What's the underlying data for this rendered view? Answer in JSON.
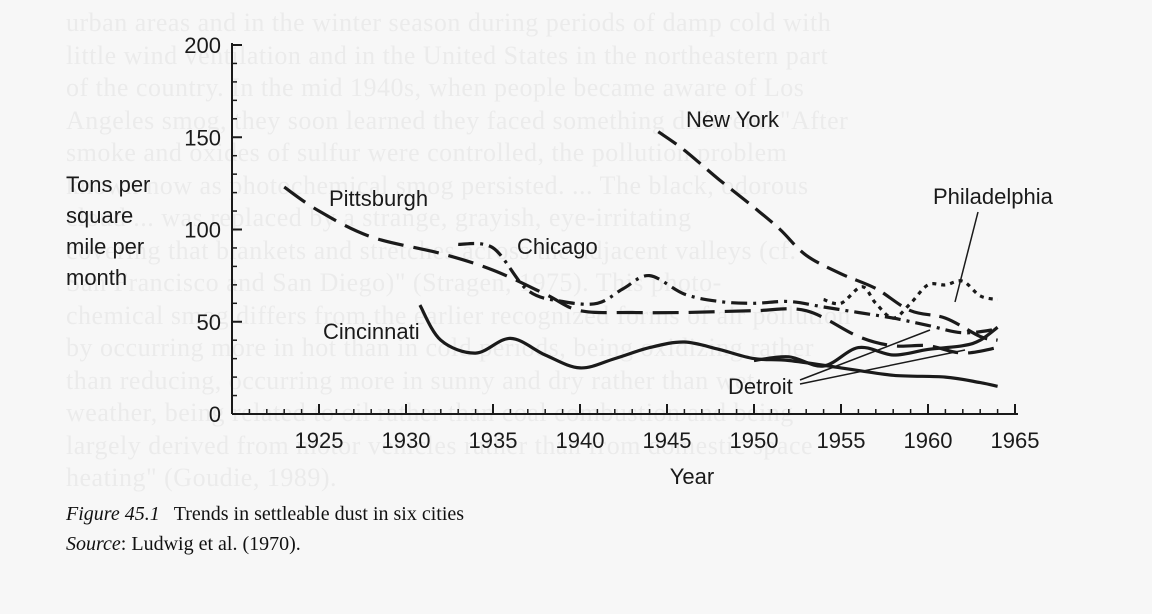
{
  "background_text": [
    "urban areas and in the winter season during periods of damp cold with",
    "little wind ventilation and in the United States in the northeastern part",
    "of the country. In the mid 1940s, when people became aware of Los",
    "Angeles smog, they soon learned they faced something different. \"After",
    "smoke and oxides of sulfur were controlled, the pollution problem",
    "known now as photochemical smog persisted. ... The black, odorous",
    "cloud ... was replaced by a strange, grayish, eye-irritating",
    "covering that blankets and stretches across the adjacent valleys (cf.",
    "San Francisco and San Diego)\" (Stragen, 1975). This photo-",
    "chemical smog differs from the earlier recognized forms of air pollution",
    "by occurring more in hot than in cold periods, being oxidizing rather",
    "than reducing, occurring more in sunny and dry rather than wet",
    "weather, being related to oil rather than coal combustion and being",
    "largely derived from motor vehicles rather than from domestic space",
    "heating\" (Goudie, 1989)."
  ],
  "caption": {
    "figure_label": "Figure 45.1",
    "title": "Trends in settleable dust in six cities",
    "source_label": "Source",
    "source_text": ": Ludwig et al. (1970)."
  },
  "chart_data": {
    "type": "line",
    "title": "",
    "xlabel": "Year",
    "ylabel": "Tons per square mile per month",
    "ylabel_lines": [
      "Tons per",
      "square",
      "mile per",
      "month"
    ],
    "xlim": [
      1920,
      1965
    ],
    "ylim": [
      0,
      200
    ],
    "x_ticks": [
      1925,
      1930,
      1935,
      1940,
      1945,
      1950,
      1955,
      1960,
      1965
    ],
    "y_ticks": [
      0,
      50,
      100,
      150,
      200
    ],
    "x_tick_labels": [
      "1925",
      "1930",
      "1935",
      "1940",
      "1945",
      "1950",
      "1955",
      "1960",
      "1965"
    ],
    "y_tick_labels": [
      "0",
      "50",
      "100",
      "150",
      "200"
    ],
    "grid": false,
    "legend": "none (series labeled directly on chart)",
    "series": [
      {
        "name": "New York",
        "style": "dashed",
        "x": [
          1944.5,
          1946,
          1948,
          1950,
          1951.5,
          1953,
          1955,
          1957,
          1959,
          1961,
          1963,
          1964
        ],
        "y": [
          153,
          143,
          127,
          112,
          100,
          86,
          76,
          68,
          56,
          52,
          42,
          40
        ]
      },
      {
        "name": "Pittsburgh",
        "style": "long-dashed",
        "x": [
          1923,
          1925,
          1928,
          1932,
          1935,
          1938,
          1940,
          1943,
          1946,
          1950,
          1953,
          1956,
          1958,
          1960,
          1962,
          1964
        ],
        "y": [
          123,
          110,
          96,
          87,
          78,
          65,
          56,
          55,
          55,
          56,
          56,
          42,
          37,
          37,
          33,
          36
        ]
      },
      {
        "name": "Chicago",
        "style": "dash-dot",
        "x": [
          1933,
          1935,
          1937,
          1939,
          1941,
          1942.5,
          1944,
          1946,
          1948,
          1950,
          1952,
          1954,
          1956,
          1958,
          1960,
          1962,
          1964
        ],
        "y": [
          92,
          90,
          67,
          61,
          60,
          68,
          75,
          65,
          61,
          60,
          61,
          58,
          55,
          52,
          48,
          44,
          46
        ]
      },
      {
        "name": "Philadelphia",
        "style": "dotted-to-dashed",
        "x": [
          1954,
          1955,
          1956.2,
          1957,
          1958,
          1959,
          1960,
          1961,
          1962,
          1963,
          1964
        ],
        "y": [
          62,
          60,
          69,
          60,
          52,
          60,
          70,
          70,
          72,
          64,
          62
        ]
      },
      {
        "name": "Cincinnati",
        "style": "solid",
        "x": [
          1930.8,
          1932,
          1934,
          1936,
          1938,
          1940,
          1942,
          1944,
          1946,
          1948,
          1950,
          1952,
          1955,
          1958,
          1961,
          1963,
          1964
        ],
        "y": [
          59,
          40,
          33,
          41,
          32,
          25,
          30,
          36,
          39,
          35,
          30,
          29,
          25,
          21,
          20,
          17,
          15
        ]
      },
      {
        "name": "Detroit",
        "style": "solid",
        "x": [
          1950,
          1952,
          1954,
          1956,
          1958,
          1960,
          1962,
          1963,
          1964
        ],
        "y": [
          29,
          31,
          26,
          36,
          32,
          35,
          37,
          40,
          47
        ]
      }
    ]
  }
}
